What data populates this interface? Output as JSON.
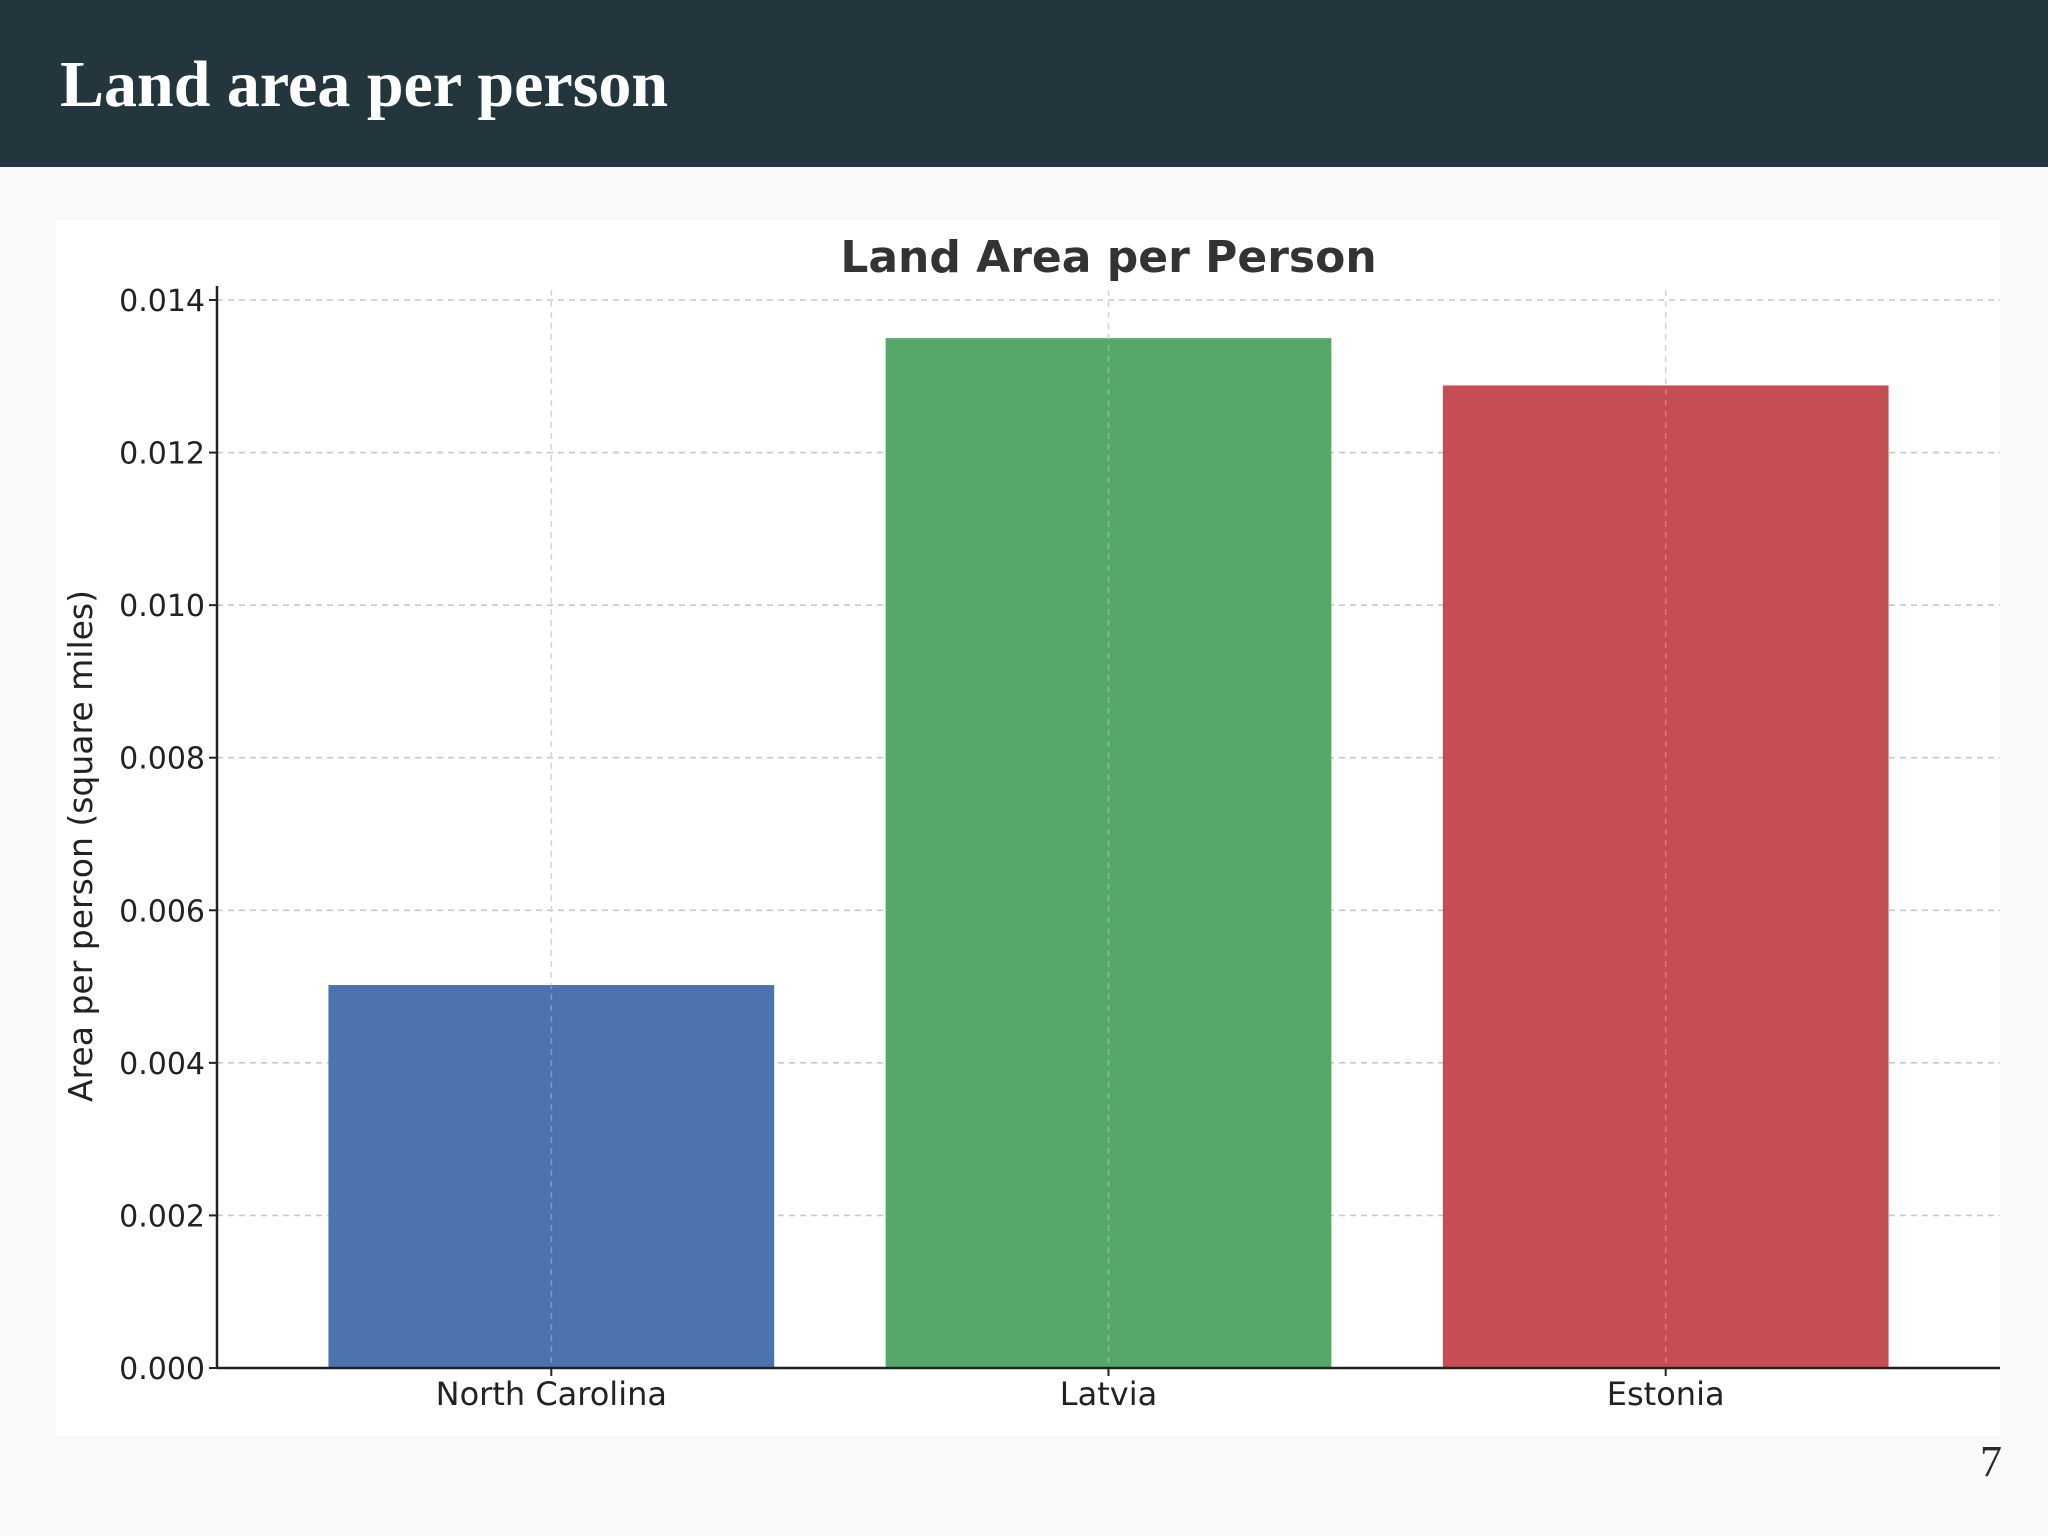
{
  "slide": {
    "title": "Land area per person",
    "page_number": "7"
  },
  "colors": {
    "header_bg": "#24363d",
    "header_text": "#ffffff",
    "page_bg": "#f9f9f9",
    "panel_bg": "#ffffff"
  },
  "chart_data": {
    "type": "bar",
    "title": "Land Area per Person",
    "xlabel": "",
    "ylabel": "Area per person (square miles)",
    "categories": [
      "North Carolina",
      "Latvia",
      "Estonia"
    ],
    "values": [
      0.00502,
      0.0135,
      0.01288
    ],
    "colors": [
      "#4c72b0",
      "#55a868",
      "#c44e52"
    ],
    "ylim": [
      0,
      0.014
    ],
    "yticks": [
      "0.000",
      "0.002",
      "0.004",
      "0.006",
      "0.008",
      "0.010",
      "0.012",
      "0.014"
    ],
    "grid": true,
    "legend": "none"
  }
}
